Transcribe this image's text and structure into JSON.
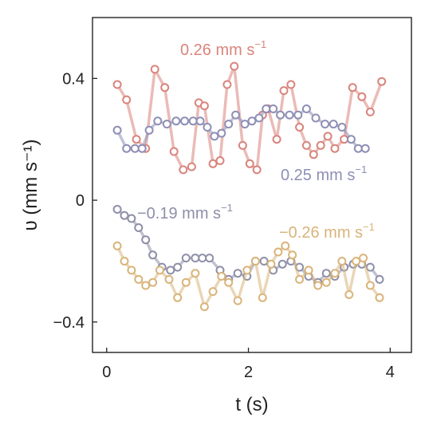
{
  "chart_data": {
    "type": "line",
    "title": "",
    "xlabel": "t (s)",
    "ylabel": "υ (mm s⁻¹)",
    "xlim": [
      -0.2,
      4.3
    ],
    "ylim": [
      -0.5,
      0.6
    ],
    "xticks": [
      0,
      2,
      4
    ],
    "yticks": [
      0.4,
      0,
      -0.4
    ],
    "xtick_labels": [
      "0",
      "2",
      "4"
    ],
    "ytick_labels": [
      "0.4",
      "0",
      "−0.4"
    ],
    "grid": false,
    "legend": "none",
    "series": [
      {
        "label_text": "0.26 mm s",
        "label_exp": "−1",
        "color": "#D9847C",
        "x": [
          0.15,
          0.28,
          0.42,
          0.55,
          0.68,
          0.82,
          0.95,
          1.08,
          1.2,
          1.3,
          1.38,
          1.5,
          1.6,
          1.7,
          1.8,
          1.92,
          2.02,
          2.12,
          2.2,
          2.28,
          2.4,
          2.5,
          2.6,
          2.72,
          2.82,
          2.92,
          3.02,
          3.12,
          3.22,
          3.35,
          3.47,
          3.6,
          3.72,
          3.88
        ],
        "y": [
          0.38,
          0.33,
          0.2,
          0.17,
          0.43,
          0.37,
          0.16,
          0.1,
          0.11,
          0.32,
          0.31,
          0.12,
          0.13,
          0.38,
          0.44,
          0.18,
          0.12,
          0.1,
          0.28,
          0.3,
          0.2,
          0.36,
          0.38,
          0.24,
          0.18,
          0.15,
          0.18,
          0.21,
          0.17,
          0.2,
          0.37,
          0.34,
          0.29,
          0.39
        ]
      },
      {
        "label_text": "0.25 mm s",
        "label_exp": "−1",
        "color": "#8E8FB5",
        "x": [
          0.15,
          0.28,
          0.4,
          0.5,
          0.6,
          0.72,
          0.85,
          0.98,
          1.1,
          1.22,
          1.32,
          1.42,
          1.52,
          1.62,
          1.72,
          1.82,
          1.95,
          2.05,
          2.15,
          2.25,
          2.35,
          2.45,
          2.58,
          2.7,
          2.82,
          2.95,
          3.08,
          3.2,
          3.32,
          3.45,
          3.55,
          3.65
        ],
        "y": [
          0.23,
          0.17,
          0.17,
          0.17,
          0.23,
          0.26,
          0.25,
          0.26,
          0.26,
          0.26,
          0.26,
          0.24,
          0.21,
          0.22,
          0.25,
          0.28,
          0.25,
          0.26,
          0.27,
          0.3,
          0.3,
          0.28,
          0.28,
          0.28,
          0.3,
          0.27,
          0.25,
          0.25,
          0.24,
          0.2,
          0.17,
          0.17
        ]
      },
      {
        "label_text": "−0.19 mm s",
        "label_exp": "−1",
        "color": "#8E8FA8",
        "x": [
          0.15,
          0.25,
          0.35,
          0.45,
          0.55,
          0.65,
          0.78,
          0.9,
          1.0,
          1.12,
          1.25,
          1.35,
          1.45,
          1.6,
          1.72,
          1.85,
          1.98,
          2.1,
          2.22,
          2.35,
          2.48,
          2.6,
          2.72,
          2.85,
          2.98,
          3.1,
          3.22,
          3.35,
          3.48,
          3.6,
          3.72,
          3.85
        ],
        "y": [
          -0.03,
          -0.05,
          -0.06,
          -0.09,
          -0.13,
          -0.18,
          -0.22,
          -0.23,
          -0.22,
          -0.19,
          -0.19,
          -0.19,
          -0.19,
          -0.23,
          -0.26,
          -0.24,
          -0.25,
          -0.2,
          -0.2,
          -0.23,
          -0.21,
          -0.2,
          -0.22,
          -0.25,
          -0.27,
          -0.24,
          -0.25,
          -0.22,
          -0.21,
          -0.21,
          -0.22,
          -0.26
        ]
      },
      {
        "label_text": "−0.26 mm s",
        "label_exp": "−1",
        "color": "#D9B47A",
        "x": [
          0.15,
          0.25,
          0.35,
          0.45,
          0.55,
          0.65,
          0.75,
          0.88,
          1.0,
          1.12,
          1.25,
          1.38,
          1.5,
          1.62,
          1.72,
          1.85,
          1.98,
          2.1,
          2.2,
          2.32,
          2.42,
          2.52,
          2.62,
          2.72,
          2.85,
          2.98,
          3.1,
          3.22,
          3.32,
          3.42,
          3.52,
          3.62,
          3.72,
          3.85
        ],
        "y": [
          -0.15,
          -0.2,
          -0.23,
          -0.26,
          -0.28,
          -0.27,
          -0.23,
          -0.26,
          -0.32,
          -0.27,
          -0.24,
          -0.35,
          -0.3,
          -0.25,
          -0.27,
          -0.33,
          -0.23,
          -0.2,
          -0.32,
          -0.21,
          -0.17,
          -0.15,
          -0.18,
          -0.26,
          -0.23,
          -0.28,
          -0.27,
          -0.24,
          -0.2,
          -0.31,
          -0.2,
          -0.19,
          -0.28,
          -0.32
        ]
      }
    ]
  }
}
